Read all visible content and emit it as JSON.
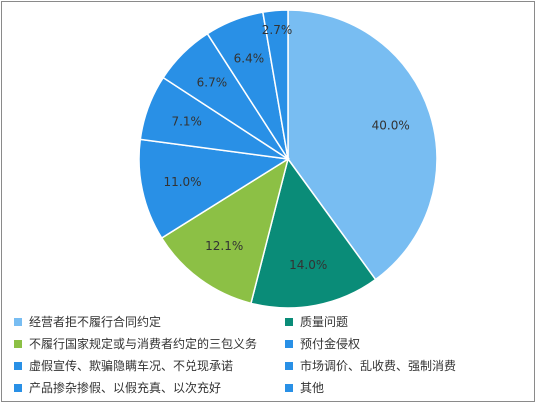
{
  "chart_data": {
    "type": "pie",
    "slices": [
      {
        "label": "经营者拒不履行合同约定",
        "value": 40.0,
        "display": "40.0%",
        "color": "#78bdf2"
      },
      {
        "label": "质量问题",
        "value": 14.0,
        "display": "14.0%",
        "color": "#0a8c78"
      },
      {
        "label": "不履行国家规定或与消费者约定的三包义务",
        "value": 12.1,
        "display": "12.1%",
        "color": "#8cc045"
      },
      {
        "label": "预付金侵权",
        "value": 11.0,
        "display": "11.0%",
        "color": "#2990e6"
      },
      {
        "label": "虚假宣传、欺骗隐瞒车况、不兑现承诺",
        "value": 7.1,
        "display": "7.1%",
        "color": "#2990e6"
      },
      {
        "label": "市场调价、乱收费、强制消费",
        "value": 6.7,
        "display": "6.7%",
        "color": "#2990e6"
      },
      {
        "label": "产品掺杂掺假、以假充真、以次充好",
        "value": 6.4,
        "display": "6.4%",
        "color": "#2990e6"
      },
      {
        "label": "其他",
        "value": 2.7,
        "display": "2.7%",
        "color": "#2990e6"
      }
    ],
    "legend_order": [
      0,
      1,
      2,
      3,
      4,
      5,
      6,
      7
    ],
    "legend_placement": "bottom",
    "label_color": "#333333",
    "border_color": "#ffffff"
  }
}
